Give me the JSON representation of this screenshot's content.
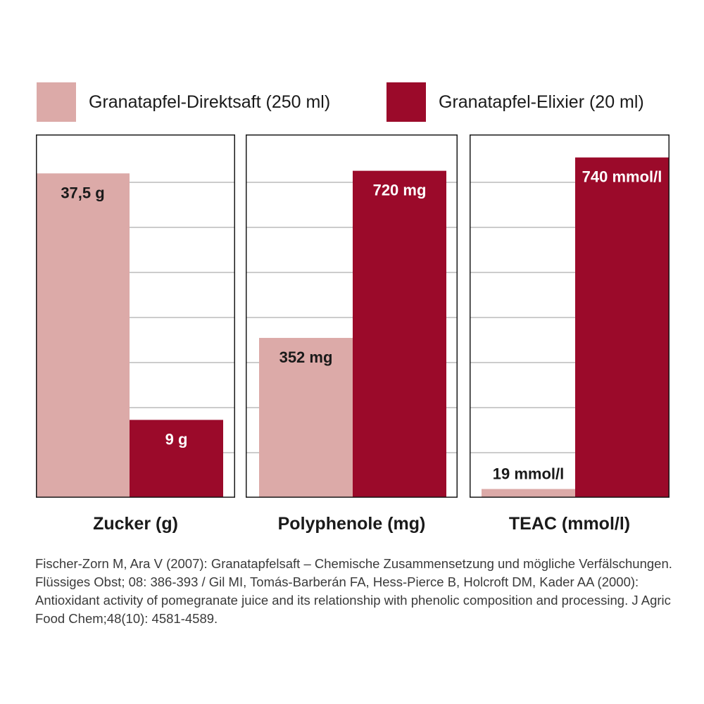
{
  "colors": {
    "direktsaft": "#dcaaa8",
    "elixier": "#9b0a2a",
    "frame": "#1a1a1a",
    "grid": "#9a9a9a"
  },
  "legend": {
    "items": [
      {
        "label": "Granatapfel-Direktsaft (250 ml)",
        "color": "#dcaaa8"
      },
      {
        "label": "Granatapfel-Elixier (20 ml)",
        "color": "#9b0a2a"
      }
    ]
  },
  "chart_data": [
    {
      "type": "bar",
      "title": "Zucker (g)",
      "categories": [
        "Granatapfel-Direktsaft (250 ml)",
        "Granatapfel-Elixier (20 ml)"
      ],
      "values": [
        37.5,
        9
      ],
      "value_labels": [
        "37,5 g",
        "9 g"
      ],
      "ylim": [
        0,
        42
      ],
      "grid": true
    },
    {
      "type": "bar",
      "title": "Polyphenole (mg)",
      "categories": [
        "Granatapfel-Direktsaft (250 ml)",
        "Granatapfel-Elixier (20 ml)"
      ],
      "values": [
        352,
        720
      ],
      "value_labels": [
        "352 mg",
        "720 mg"
      ],
      "ylim": [
        0,
        800
      ],
      "grid": true
    },
    {
      "type": "bar",
      "title": "TEAC (mmol/l)",
      "categories": [
        "Granatapfel-Direktsaft (250 ml)",
        "Granatapfel-Elixier (20 ml)"
      ],
      "values": [
        19,
        740
      ],
      "value_labels": [
        "19 mmol/l",
        "740 mmol/l"
      ],
      "ylim": [
        0,
        790
      ],
      "grid": true
    }
  ],
  "citation": "Fischer-Zorn M, Ara V (2007): Granatapfelsaft – Chemische Zusammensetzung und mögliche Verfälschungen. Flüssiges Obst; 08: 386-393 / Gil MI, Tomás-Barberán FA, Hess-Pierce B, Holcroft DM, Kader AA (2000): Antioxidant activity of pomegranate juice and its relationship with phenolic composition and processing. J Agric Food Chem;48(10): 4581-4589."
}
